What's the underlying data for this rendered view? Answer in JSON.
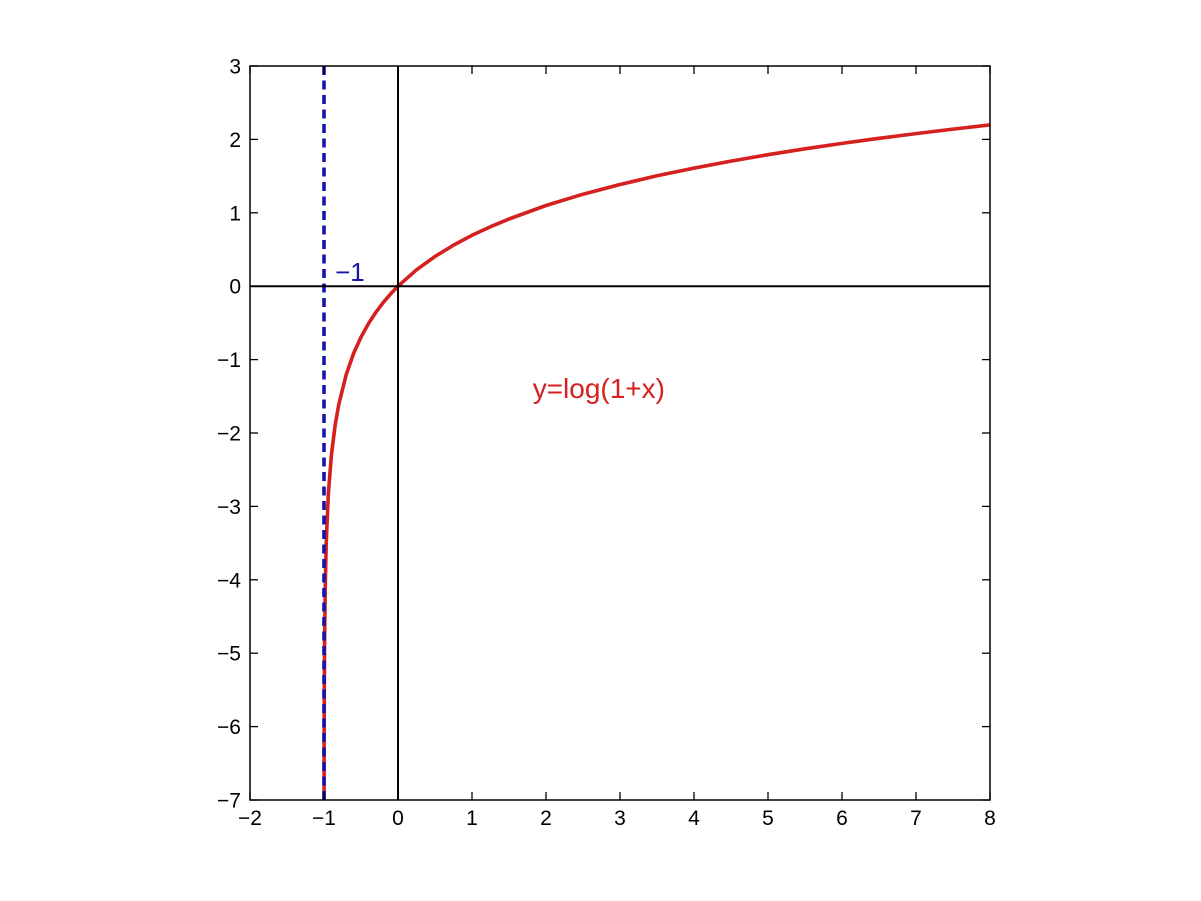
{
  "figure": {
    "background": "#ffffff",
    "box_color": "#000000",
    "axis_line_color": "#000000"
  },
  "chart_data": {
    "type": "line",
    "title": "",
    "xlabel": "",
    "ylabel": "",
    "xlim": [
      -2,
      8
    ],
    "ylim": [
      -7,
      3
    ],
    "grid": false,
    "legend": null,
    "box": true,
    "ticks_inward_all_sides": true,
    "zero_lines": {
      "x": 0,
      "y": 0,
      "color": "#000000",
      "width": 2
    },
    "xticks": {
      "values": [
        -2,
        -1,
        0,
        1,
        2,
        3,
        4,
        5,
        6,
        7,
        8
      ],
      "labels": [
        "−2",
        "−1",
        "0",
        "1",
        "2",
        "3",
        "4",
        "5",
        "6",
        "7",
        "8"
      ]
    },
    "yticks": {
      "values": [
        -7,
        -6,
        -5,
        -4,
        -3,
        -2,
        -1,
        0,
        1,
        2,
        3
      ],
      "labels": [
        "−7",
        "−6",
        "−5",
        "−4",
        "−3",
        "−2",
        "−1",
        "0",
        "1",
        "2",
        "3"
      ]
    },
    "series": [
      {
        "name": "y=log(1+x)",
        "kind": "curve",
        "color": "#d62020",
        "style": "solid",
        "width": 3.6,
        "points": [
          [
            -0.99909,
            -7.0
          ],
          [
            -0.998,
            -6.215
          ],
          [
            -0.996,
            -5.521
          ],
          [
            -0.992,
            -4.828
          ],
          [
            -0.984,
            -4.135
          ],
          [
            -0.97,
            -3.507
          ],
          [
            -0.94,
            -2.813
          ],
          [
            -0.9,
            -2.303
          ],
          [
            -0.85,
            -1.897
          ],
          [
            -0.8,
            -1.609
          ],
          [
            -0.7,
            -1.204
          ],
          [
            -0.6,
            -0.916
          ],
          [
            -0.5,
            -0.693
          ],
          [
            -0.4,
            -0.511
          ],
          [
            -0.3,
            -0.357
          ],
          [
            -0.2,
            -0.223
          ],
          [
            -0.1,
            -0.105
          ],
          [
            0,
            0
          ],
          [
            0.25,
            0.223
          ],
          [
            0.5,
            0.405
          ],
          [
            0.75,
            0.56
          ],
          [
            1,
            0.693
          ],
          [
            1.25,
            0.811
          ],
          [
            1.5,
            0.916
          ],
          [
            2,
            1.099
          ],
          [
            2.5,
            1.253
          ],
          [
            3,
            1.386
          ],
          [
            3.5,
            1.504
          ],
          [
            4,
            1.609
          ],
          [
            4.5,
            1.705
          ],
          [
            5,
            1.792
          ],
          [
            5.5,
            1.872
          ],
          [
            6,
            1.946
          ],
          [
            6.5,
            2.015
          ],
          [
            7,
            2.079
          ],
          [
            7.5,
            2.14
          ],
          [
            8,
            2.197
          ]
        ]
      },
      {
        "name": "vertical-asymptote-x=-1",
        "kind": "line",
        "color": "#1515ab",
        "style": "dashed",
        "width": 3.6,
        "points": [
          [
            -1,
            -7
          ],
          [
            -1,
            3
          ]
        ]
      }
    ],
    "annotations": [
      {
        "text": "−1",
        "x": -0.85,
        "y": 0.07,
        "color": "#1515ab",
        "size": 26
      },
      {
        "text": "y=log(1+x)",
        "x": 1.82,
        "y": -1.52,
        "color": "#d62020",
        "size": 28
      }
    ]
  }
}
